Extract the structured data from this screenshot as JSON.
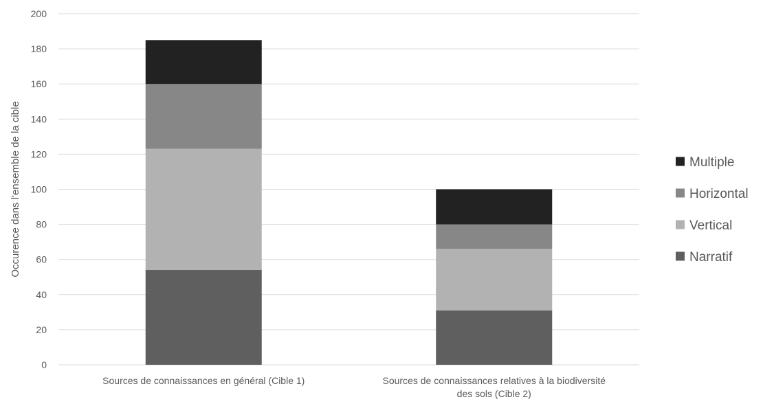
{
  "chart_data": {
    "type": "bar",
    "stacked": true,
    "title": "",
    "xlabel": "",
    "ylabel": "Occurence dans l'ensemble de la cible",
    "ylim": [
      0,
      200
    ],
    "y_ticks": [
      0,
      20,
      40,
      60,
      80,
      100,
      120,
      140,
      160,
      180,
      200
    ],
    "grid": true,
    "legend_position": "right",
    "categories": [
      [
        "Sources de connaissances en général (Cible 1)"
      ],
      [
        "Sources de connaissances relatives à la biodiversité",
        "des sols (Cible 2)"
      ]
    ],
    "series": [
      {
        "name": "Narratif",
        "color": "#5f5f5f",
        "values": [
          54,
          31
        ]
      },
      {
        "name": "Vertical",
        "color": "#b2b2b2",
        "values": [
          69,
          35
        ]
      },
      {
        "name": "Horizontal",
        "color": "#878787",
        "values": [
          37,
          14
        ]
      },
      {
        "name": "Multiple",
        "color": "#222222",
        "values": [
          25,
          20
        ]
      }
    ],
    "legend_order": [
      "Multiple",
      "Horizontal",
      "Vertical",
      "Narratif"
    ]
  }
}
